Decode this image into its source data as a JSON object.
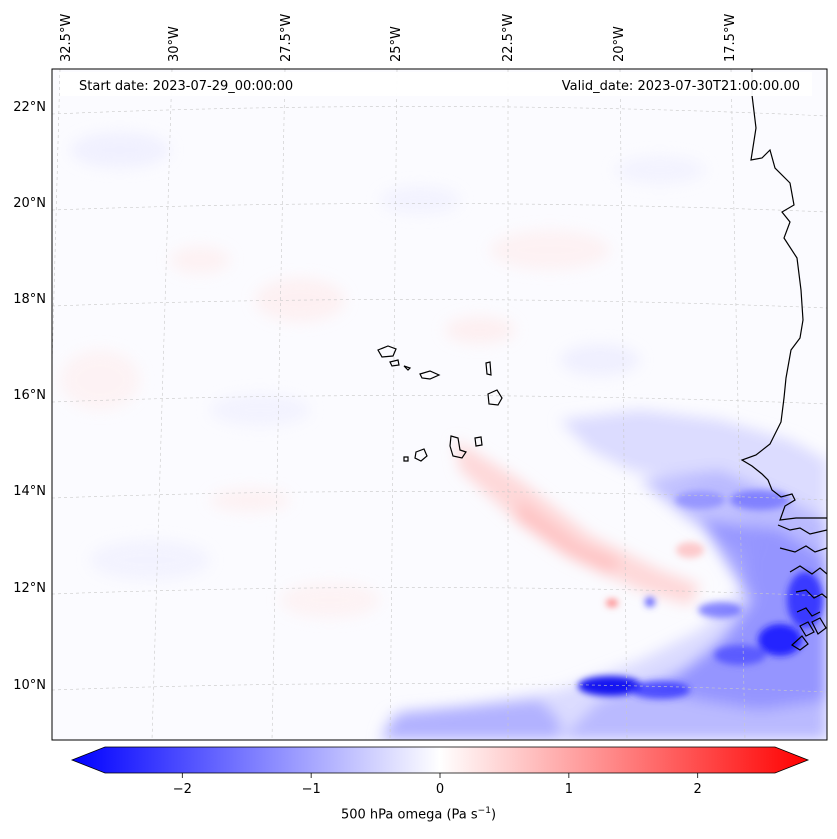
{
  "header": {
    "start_date": "Start date: 2023-07-29_00:00:00",
    "valid_date": "Valid_date: 2023-07-30T21:00:00.00"
  },
  "lon_ticks": [
    "32.5°W",
    "30°W",
    "27.5°W",
    "25°W",
    "22.5°W",
    "20°W",
    "17.5°W"
  ],
  "lat_ticks": [
    "22°N",
    "20°N",
    "18°N",
    "16°N",
    "14°N",
    "12°N",
    "10°N"
  ],
  "colorbar": {
    "label_main": "500 hPa omega (Pa s",
    "label_sup": "−1",
    "label_end": ")",
    "ticks": [
      "−2",
      "−1",
      "0",
      "1",
      "2"
    ],
    "range": [
      -2.6,
      2.6
    ],
    "cmap": "bwr",
    "negative_color": "#0000ff",
    "zero_color": "#ffffff",
    "positive_color": "#ff0000",
    "extend": "both"
  },
  "map": {
    "gridlines": true,
    "coastline_color": "#000000",
    "field": "500 hPa omega"
  }
}
